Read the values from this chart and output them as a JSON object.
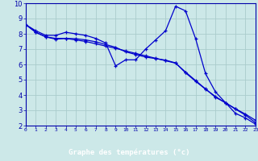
{
  "xlabel": "Graphe des températures (°c)",
  "xlim": [
    0,
    23
  ],
  "ylim": [
    2,
    10
  ],
  "yticks": [
    2,
    3,
    4,
    5,
    6,
    7,
    8,
    9,
    10
  ],
  "xticks": [
    0,
    1,
    2,
    3,
    4,
    5,
    6,
    7,
    8,
    9,
    10,
    11,
    12,
    13,
    14,
    15,
    16,
    17,
    18,
    19,
    20,
    21,
    22,
    23
  ],
  "background_color": "#cce8e8",
  "grid_color": "#aacccc",
  "axis_color": "#0000aa",
  "line_color": "#0000cc",
  "xaxis_bg": "#0000aa",
  "line1_y": [
    8.6,
    8.2,
    7.9,
    7.9,
    8.1,
    8.0,
    7.9,
    7.7,
    7.4,
    5.9,
    6.3,
    6.3,
    7.0,
    7.6,
    8.2,
    9.8,
    9.5,
    7.7,
    5.4,
    4.2,
    3.5,
    2.8,
    2.5,
    2.1
  ],
  "line2_y": [
    8.6,
    8.1,
    7.8,
    7.7,
    7.7,
    7.6,
    7.5,
    7.35,
    7.2,
    7.05,
    6.88,
    6.72,
    6.56,
    6.4,
    6.24,
    6.08,
    5.5,
    4.95,
    4.4,
    3.85,
    3.5,
    3.1,
    2.75,
    2.35
  ],
  "line3_y": [
    8.6,
    8.1,
    7.8,
    7.65,
    7.7,
    7.68,
    7.6,
    7.48,
    7.3,
    7.12,
    6.82,
    6.65,
    6.48,
    6.38,
    6.28,
    6.1,
    5.45,
    4.9,
    4.38,
    3.9,
    3.48,
    3.08,
    2.68,
    2.2
  ]
}
